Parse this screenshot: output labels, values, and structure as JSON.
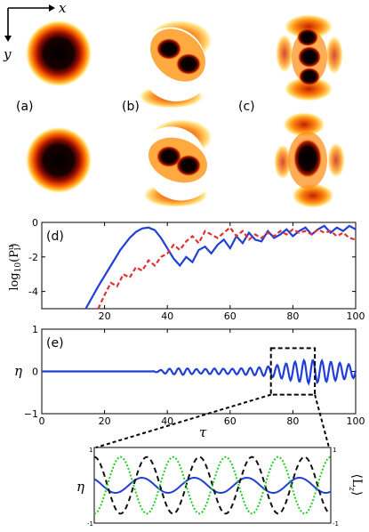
{
  "figure": {
    "panel_labels": [
      "(a)",
      "(b)",
      "(c)",
      "(d)",
      "(e)"
    ],
    "axis_arrow_labels": {
      "x": "x",
      "y": "y"
    }
  },
  "chart_data": [
    {
      "type": "line",
      "panel": "(d)",
      "xlabel": "",
      "ylabel": "log10(P_l^u)",
      "xlim": [
        0,
        100
      ],
      "ylim": [
        -5,
        0
      ],
      "xticks": [
        20,
        40,
        60,
        80,
        100
      ],
      "yticks": [
        0,
        -2,
        -4
      ],
      "series": [
        {
          "color": "#1f3fd6",
          "style": "solid",
          "x": [
            14,
            18,
            22,
            25,
            28,
            30,
            32,
            34,
            36,
            38,
            40,
            42,
            44,
            46,
            48,
            50,
            52,
            54,
            56,
            58,
            60,
            62,
            64,
            66,
            68,
            70,
            72,
            74,
            76,
            78,
            80,
            82,
            84,
            86,
            88,
            90,
            92,
            94,
            96,
            98,
            100
          ],
          "y": [
            -5,
            -3.7,
            -2.5,
            -1.6,
            -0.9,
            -0.55,
            -0.35,
            -0.3,
            -0.45,
            -0.9,
            -1.5,
            -2.1,
            -2.5,
            -2.0,
            -2.3,
            -1.6,
            -1.4,
            -1.8,
            -1.3,
            -1.0,
            -1.5,
            -0.8,
            -1.2,
            -0.6,
            -1.0,
            -1.1,
            -0.5,
            -0.9,
            -0.7,
            -0.4,
            -0.8,
            -0.5,
            -0.3,
            -0.7,
            -0.4,
            -0.2,
            -0.6,
            -0.3,
            -0.5,
            -0.2,
            -0.4
          ]
        },
        {
          "color": "#e03030",
          "style": "dashed",
          "x": [
            18,
            20,
            22,
            24,
            26,
            28,
            30,
            32,
            34,
            36,
            38,
            40,
            42,
            44,
            46,
            48,
            50,
            52,
            54,
            56,
            58,
            60,
            62,
            64,
            66,
            68,
            70,
            72,
            74,
            76,
            78,
            80,
            82,
            84,
            86,
            88,
            90,
            92,
            94,
            96,
            98,
            100
          ],
          "y": [
            -5,
            -4.2,
            -3.5,
            -3.7,
            -3.0,
            -3.2,
            -2.6,
            -2.8,
            -2.2,
            -2.5,
            -2.0,
            -1.8,
            -1.3,
            -1.6,
            -1.1,
            -0.8,
            -1.2,
            -0.5,
            -0.7,
            -0.9,
            -0.6,
            -0.3,
            -0.8,
            -0.5,
            -1.0,
            -0.7,
            -0.9,
            -0.6,
            -0.8,
            -0.5,
            -0.7,
            -0.4,
            -0.6,
            -0.5,
            -0.7,
            -0.4,
            -0.6,
            -0.5,
            -0.8,
            -0.6,
            -0.9,
            -1.0
          ]
        }
      ]
    },
    {
      "type": "line",
      "panel": "(e)",
      "xlabel": "τ",
      "ylabel": "η",
      "xlim": [
        0,
        100
      ],
      "ylim": [
        -1,
        1
      ],
      "xticks": [
        0,
        20,
        40,
        60,
        80,
        100
      ],
      "yticks": [
        1,
        0,
        -1
      ],
      "series": [
        {
          "color": "#1f3fd6",
          "style": "solid",
          "description_points": "small oscillation around 0 growing after ~40",
          "x": [
            0,
            35,
            40,
            45,
            50,
            55,
            60,
            65,
            70,
            75,
            80,
            85,
            90,
            95,
            100
          ],
          "amp": [
            0.0,
            0.0,
            0.06,
            0.08,
            0.05,
            0.07,
            0.06,
            0.08,
            0.1,
            0.15,
            0.22,
            0.28,
            0.25,
            0.2,
            0.15
          ]
        }
      ],
      "zoom_box_x": [
        73,
        87
      ]
    },
    {
      "type": "line",
      "panel": "inset",
      "ylabel_left": "η",
      "ylabel_right": "⟨L_z⟩",
      "ylim": [
        -1,
        1
      ],
      "yticks": [
        1,
        -1
      ],
      "series": [
        {
          "color": "#1f3fd6",
          "style": "solid",
          "amplitude": 0.2,
          "cycles": 4.5
        },
        {
          "color": "#111111",
          "style": "dashed",
          "amplitude": 0.75,
          "cycles": 4.5,
          "phase": 0
        },
        {
          "color": "#22cc22",
          "style": "dotted",
          "amplitude": 0.75,
          "cycles": 4.5,
          "phase": 3.14159
        }
      ]
    }
  ]
}
